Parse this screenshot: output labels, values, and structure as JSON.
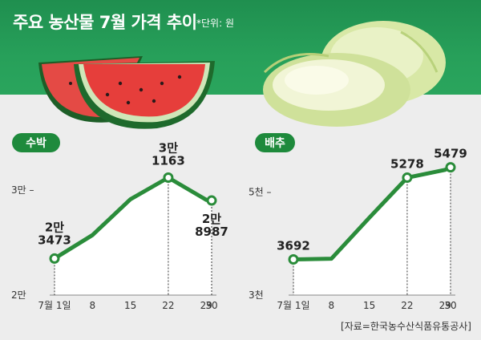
{
  "title": "주요 농산물 7월 가격 추이",
  "unit_note": "*단위: 원",
  "source": "[자료=한국농수산식품유통공사]",
  "colors": {
    "line": "#2a8c3a",
    "band": "#27a05a",
    "badge": "#1e8a3c",
    "fill": "#ffffff"
  },
  "chart_data": [
    {
      "type": "line",
      "title": "수박",
      "x": [
        "7월 1일",
        "8",
        "15",
        "22",
        "29",
        "30"
      ],
      "x_days": [
        1,
        8,
        15,
        22,
        29,
        30
      ],
      "values": [
        23473,
        25700,
        29100,
        31163,
        29050,
        28987
      ],
      "y_ticks": [
        {
          "value": 20000,
          "label": "2만"
        },
        {
          "value": 30000,
          "label": "3만"
        }
      ],
      "ylim": [
        20000,
        32800
      ],
      "labeled_points": [
        {
          "index": 0,
          "lines": [
            "2만",
            "3473"
          ]
        },
        {
          "index": 3,
          "lines": [
            "3만",
            "1163"
          ]
        },
        {
          "index": 5,
          "lines": [
            "2만",
            "8987"
          ]
        }
      ]
    },
    {
      "type": "line",
      "title": "배추",
      "x": [
        "7월 1일",
        "8",
        "15",
        "22",
        "29",
        "30"
      ],
      "x_days": [
        1,
        8,
        15,
        22,
        29,
        30
      ],
      "values": [
        3692,
        3705,
        4500,
        5278,
        5430,
        5479
      ],
      "y_ticks": [
        {
          "value": 3000,
          "label": "3천"
        },
        {
          "value": 5000,
          "label": "5천"
        }
      ],
      "ylim": [
        3000,
        5800
      ],
      "labeled_points": [
        {
          "index": 0,
          "lines": [
            "3692"
          ]
        },
        {
          "index": 3,
          "lines": [
            "5278"
          ]
        },
        {
          "index": 5,
          "lines": [
            "5479"
          ]
        }
      ]
    }
  ]
}
